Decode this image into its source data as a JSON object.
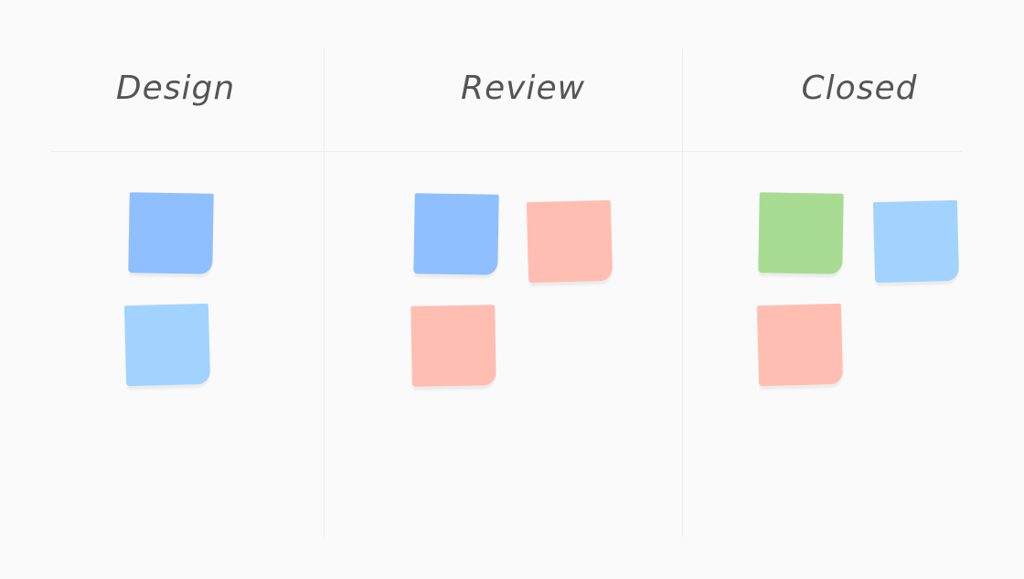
{
  "columns": [
    {
      "title": "Design"
    },
    {
      "title": "Review"
    },
    {
      "title": "Closed"
    }
  ],
  "colors": {
    "blue": "#8fbfff",
    "light_blue": "#a2d3ff",
    "salmon": "#ffbeb1",
    "green": "#a8dc93"
  },
  "notes": [
    {
      "column": "Design",
      "color": "#8fbfff"
    },
    {
      "column": "Design",
      "color": "#a2d3ff"
    },
    {
      "column": "Review",
      "color": "#8fbfff"
    },
    {
      "column": "Review",
      "color": "#ffbeb1"
    },
    {
      "column": "Review",
      "color": "#ffbeb1"
    },
    {
      "column": "Closed",
      "color": "#a8dc93"
    },
    {
      "column": "Closed",
      "color": "#a2d3ff"
    },
    {
      "column": "Closed",
      "color": "#ffbeb1"
    }
  ]
}
